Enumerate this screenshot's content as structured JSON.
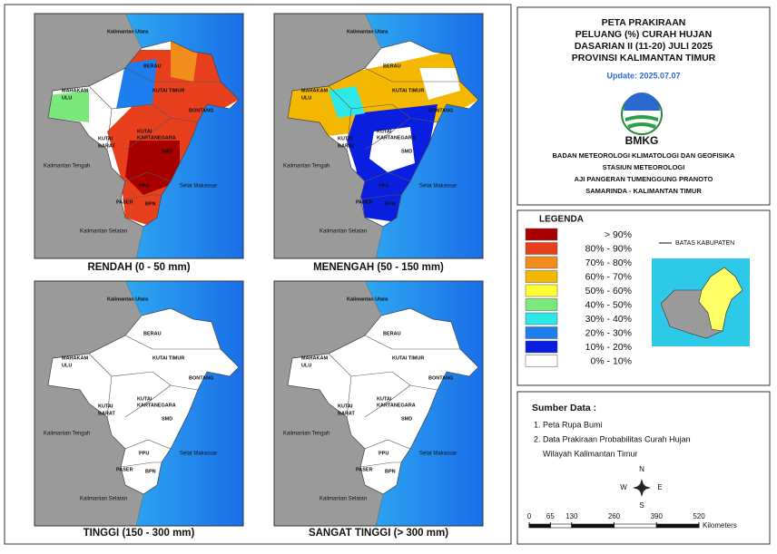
{
  "maps": [
    {
      "caption": "RENDAH (0 - 50 mm)"
    },
    {
      "caption": "MENENGAH (50 - 150 mm)"
    },
    {
      "caption": "TINGGI (150 - 300 mm)"
    },
    {
      "caption": "SANGAT TINGGI (> 300 mm)"
    }
  ],
  "map_labels": [
    "Kalimantan Utara",
    "BERAU",
    "MAHAKAM",
    "ULU",
    "KUTAI TIMUR",
    "BONTANG",
    "KUTAI",
    "KARTANEGARA",
    "KUTAI",
    "BARAT",
    "SMD",
    "Kalimantan Tengah",
    "PASER",
    "PPU",
    "BPN",
    "Selat Makassar",
    "Kalimantan Selatan"
  ],
  "header": {
    "lines": [
      "PETA PRAKIRAAN",
      "PELUANG (%) CURAH HUJAN",
      "DASARIAN II (11-20) JULI 2025",
      "PROVINSI KALIMANTAN TIMUR"
    ],
    "update": "Update: 2025.07.07",
    "logo": "BMKG",
    "agency": [
      "BADAN METEOROLOGI KLIMATOLOGI DAN GEOFISIKA",
      "STASIUN METEOROLOGI",
      "AJI PANGERAN TUMENGGUNG PRANOTO",
      "SAMARINDA - KALIMANTAN TIMUR"
    ]
  },
  "legend": {
    "title": "LEGENDA",
    "boundary": "BATAS KABUPATEN",
    "items": [
      {
        "label": "> 90%",
        "color": "#a80000"
      },
      {
        "label": "80% - 90%",
        "color": "#e8401c"
      },
      {
        "label": "70% - 80%",
        "color": "#f28c1c"
      },
      {
        "label": "60% - 70%",
        "color": "#f5b800"
      },
      {
        "label": "50% - 60%",
        "color": "#ffff33"
      },
      {
        "label": "40% - 50%",
        "color": "#7ae87a"
      },
      {
        "label": "30% - 40%",
        "color": "#2ee8e8"
      },
      {
        "label": "20% - 30%",
        "color": "#1e7ef0"
      },
      {
        "label": "10% - 20%",
        "color": "#0a1ee0"
      },
      {
        "label": "0% - 10%",
        "color": "#ffffff"
      }
    ]
  },
  "sources": {
    "title": "Sumber Data :",
    "items": [
      "1. Peta Rupa Bumi",
      "2. Data Prakiraan Probabilitas Curah Hujan",
      "Wilayah Kalimantan Timur"
    ]
  },
  "compass": [
    "N",
    "E",
    "S",
    "W"
  ],
  "scale": {
    "ticks": [
      0,
      65,
      130,
      260,
      390,
      520
    ],
    "unit": "Kilometers"
  }
}
